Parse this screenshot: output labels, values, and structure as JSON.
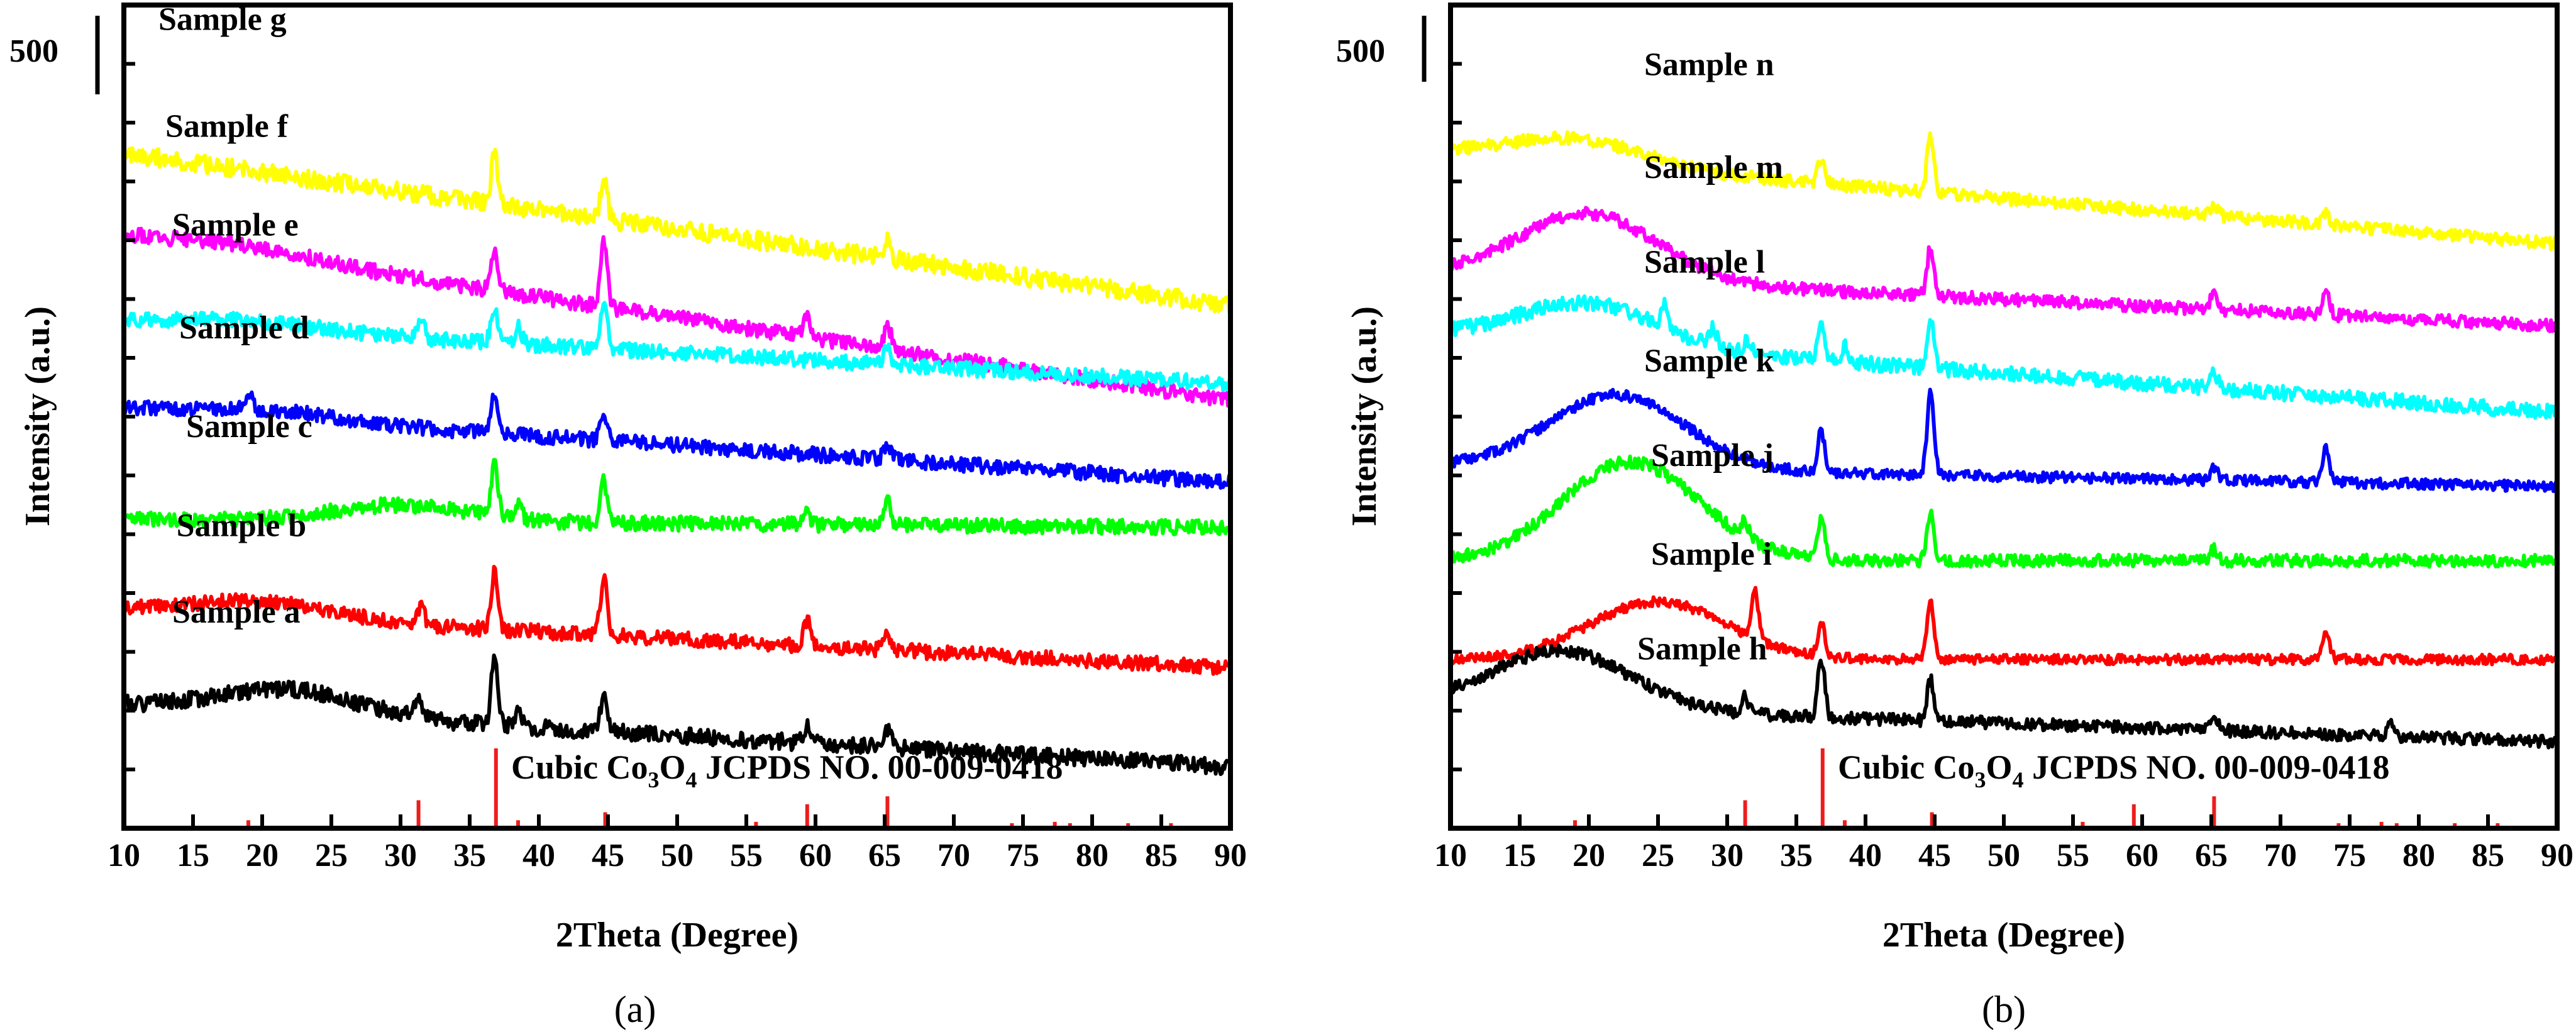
{
  "chart_data": [
    {
      "panel": "(a)",
      "type": "line",
      "xlabel": "2Theta (Degree)",
      "ylabel": "Intensity (a.u.)",
      "xlim": [
        10,
        90
      ],
      "xticks": [
        10,
        15,
        20,
        25,
        30,
        35,
        40,
        45,
        50,
        55,
        60,
        65,
        70,
        75,
        80,
        85,
        90
      ],
      "scale_bar_label": "500",
      "reference": {
        "label_prefix": "Cubic Co",
        "label_sub1": "3",
        "label_mid": "O",
        "label_sub2": "4",
        "label_suffix": " JCPDS NO. 00-009-0418",
        "peaks": [
          {
            "two_theta": 19.0,
            "rel": 0.1
          },
          {
            "two_theta": 31.3,
            "rel": 0.35
          },
          {
            "two_theta": 36.9,
            "rel": 1.0
          },
          {
            "two_theta": 38.5,
            "rel": 0.1
          },
          {
            "two_theta": 44.8,
            "rel": 0.2
          },
          {
            "two_theta": 55.7,
            "rel": 0.08
          },
          {
            "two_theta": 59.4,
            "rel": 0.3
          },
          {
            "two_theta": 65.2,
            "rel": 0.4
          },
          {
            "two_theta": 74.2,
            "rel": 0.05
          },
          {
            "two_theta": 77.3,
            "rel": 0.08
          },
          {
            "two_theta": 78.4,
            "rel": 0.05
          },
          {
            "two_theta": 82.6,
            "rel": 0.04
          },
          {
            "two_theta": 85.7,
            "rel": 0.03
          }
        ]
      },
      "series": [
        {
          "name": "Sample g",
          "color": "#ffff00",
          "start": 82.0,
          "end": 63.5,
          "hump": 0,
          "hump_center": 20,
          "seed": 7,
          "noise": 2.2,
          "label_x": 12.5,
          "label_y": 97.0,
          "peaks": [
            {
              "x": 36.8,
              "h": 6
            },
            {
              "x": 44.7,
              "h": 5
            },
            {
              "x": 65.2,
              "h": 2
            }
          ]
        },
        {
          "name": "Sample f",
          "color": "#ff00ff",
          "start": 72.0,
          "end": 52.0,
          "hump": 1,
          "hump_center": 19,
          "seed": 6,
          "noise": 1.8,
          "label_x": 13.0,
          "label_y": 84.0,
          "peaks": [
            {
              "x": 36.8,
              "h": 5
            },
            {
              "x": 44.7,
              "h": 8
            },
            {
              "x": 59.4,
              "h": 3
            },
            {
              "x": 65.2,
              "h": 3
            }
          ]
        },
        {
          "name": "Sample e",
          "color": "#00ffff",
          "start": 61.5,
          "end": 54.0,
          "hump": 1,
          "hump_center": 19,
          "seed": 5,
          "noise": 1.8,
          "label_x": 13.5,
          "label_y": 72.0,
          "peaks": [
            {
              "x": 31.5,
              "h": 2
            },
            {
              "x": 36.8,
              "h": 4
            },
            {
              "x": 38.5,
              "h": 2
            },
            {
              "x": 44.7,
              "h": 6
            },
            {
              "x": 65.2,
              "h": 2
            }
          ]
        },
        {
          "name": "Sample d",
          "color": "#0000ff",
          "start": 51.0,
          "end": 42.0,
          "hump": 1,
          "hump_center": 20,
          "seed": 4,
          "noise": 1.8,
          "label_x": 14.0,
          "label_y": 59.5,
          "peaks": [
            {
              "x": 19.0,
              "h": 2
            },
            {
              "x": 36.8,
              "h": 5
            },
            {
              "x": 44.7,
              "h": 3
            },
            {
              "x": 65.2,
              "h": 2
            }
          ]
        },
        {
          "name": "Sample c",
          "color": "#00ff00",
          "start": 37.5,
          "end": 36.5,
          "hump": 2,
          "hump_center": 30,
          "seed": 3,
          "noise": 1.8,
          "label_x": 14.5,
          "label_y": 47.5,
          "peaks": [
            {
              "x": 36.8,
              "h": 6
            },
            {
              "x": 38.5,
              "h": 2
            },
            {
              "x": 44.7,
              "h": 5
            },
            {
              "x": 59.4,
              "h": 1.5
            },
            {
              "x": 65.2,
              "h": 3
            }
          ]
        },
        {
          "name": "Sample b",
          "color": "#ff0000",
          "start": 26.5,
          "end": 19.5,
          "hump": 2,
          "hump_center": 20,
          "seed": 2,
          "noise": 1.8,
          "label_x": 13.8,
          "label_y": 35.5,
          "peaks": [
            {
              "x": 31.5,
              "h": 2
            },
            {
              "x": 36.8,
              "h": 7
            },
            {
              "x": 44.7,
              "h": 7
            },
            {
              "x": 59.4,
              "h": 3
            },
            {
              "x": 65.2,
              "h": 2
            }
          ]
        },
        {
          "name": "Sample a",
          "color": "#000000",
          "start": 15.0,
          "end": 7.5,
          "hump": 3,
          "hump_center": 22,
          "seed": 1,
          "noise": 2.0,
          "label_x": 13.5,
          "label_y": 25.0,
          "peaks": [
            {
              "x": 31.3,
              "h": 3
            },
            {
              "x": 36.8,
              "h": 8
            },
            {
              "x": 38.5,
              "h": 2
            },
            {
              "x": 44.7,
              "h": 4
            },
            {
              "x": 59.4,
              "h": 2
            },
            {
              "x": 65.2,
              "h": 2
            }
          ]
        }
      ]
    },
    {
      "panel": "(b)",
      "type": "line",
      "xlabel": "2Theta (Degree)",
      "ylabel": "Intensity (a.u.)",
      "xlim": [
        10,
        90
      ],
      "xticks": [
        10,
        15,
        20,
        25,
        30,
        35,
        40,
        45,
        50,
        55,
        60,
        65,
        70,
        75,
        80,
        85,
        90
      ],
      "scale_bar_label": "500",
      "reference": {
        "label_prefix": "Cubic Co",
        "label_sub1": "3",
        "label_mid": "O",
        "label_sub2": "4",
        "label_suffix": " JCPDS NO. 00-009-0418",
        "peaks": [
          {
            "two_theta": 19.0,
            "rel": 0.1
          },
          {
            "two_theta": 31.3,
            "rel": 0.35
          },
          {
            "two_theta": 36.9,
            "rel": 1.0
          },
          {
            "two_theta": 38.5,
            "rel": 0.1
          },
          {
            "two_theta": 44.8,
            "rel": 0.2
          },
          {
            "two_theta": 55.7,
            "rel": 0.08
          },
          {
            "two_theta": 59.4,
            "rel": 0.3
          },
          {
            "two_theta": 65.2,
            "rel": 0.4
          },
          {
            "two_theta": 74.2,
            "rel": 0.05
          },
          {
            "two_theta": 77.3,
            "rel": 0.08
          },
          {
            "two_theta": 78.4,
            "rel": 0.05
          },
          {
            "two_theta": 82.6,
            "rel": 0.04
          },
          {
            "two_theta": 85.7,
            "rel": 0.03
          }
        ]
      },
      "series": [
        {
          "name": "Sample n",
          "color": "#ffff00",
          "start": 82.0,
          "end": 71.0,
          "hump": 3,
          "hump_center": 19,
          "seed": 14,
          "noise": 1.5,
          "label_x": 24.0,
          "label_y": 91.5,
          "peaks": [
            {
              "x": 36.8,
              "h": 3
            },
            {
              "x": 44.7,
              "h": 7
            },
            {
              "x": 65.2,
              "h": 1.5
            },
            {
              "x": 73.3,
              "h": 1.5
            }
          ]
        },
        {
          "name": "Sample m",
          "color": "#ff00ff",
          "start": 67.5,
          "end": 61.0,
          "hump": 8,
          "hump_center": 20,
          "seed": 13,
          "noise": 1.5,
          "label_x": 24.0,
          "label_y": 79.0,
          "peaks": [
            {
              "x": 44.7,
              "h": 6
            },
            {
              "x": 65.2,
              "h": 2
            },
            {
              "x": 73.3,
              "h": 3
            }
          ]
        },
        {
          "name": "Sample l",
          "color": "#00ffff",
          "start": 60.0,
          "end": 50.5,
          "hump": 5,
          "hump_center": 20,
          "seed": 12,
          "noise": 1.8,
          "label_x": 24.0,
          "label_y": 67.5,
          "peaks": [
            {
              "x": 25.5,
              "h": 3
            },
            {
              "x": 29.0,
              "h": 2
            },
            {
              "x": 31.5,
              "h": 1.5
            },
            {
              "x": 36.8,
              "h": 4
            },
            {
              "x": 38.5,
              "h": 2
            },
            {
              "x": 44.7,
              "h": 6
            },
            {
              "x": 65.2,
              "h": 2
            }
          ]
        },
        {
          "name": "Sample k",
          "color": "#0000ff",
          "start": 44.0,
          "end": 41.5,
          "hump": 9,
          "hump_center": 22,
          "seed": 11,
          "noise": 1.3,
          "label_x": 24.0,
          "label_y": 55.5,
          "peaks": [
            {
              "x": 36.8,
              "h": 5
            },
            {
              "x": 44.7,
              "h": 10
            },
            {
              "x": 65.2,
              "h": 1.5
            },
            {
              "x": 73.3,
              "h": 4
            }
          ]
        },
        {
          "name": "Sample j",
          "color": "#00ff00",
          "start": 32.5,
          "end": 32.5,
          "hump": 12,
          "hump_center": 23,
          "seed": 10,
          "noise": 1.5,
          "label_x": 24.5,
          "label_y": 44.0,
          "peaks": [
            {
              "x": 31.3,
              "h": 2
            },
            {
              "x": 36.8,
              "h": 5
            },
            {
              "x": 44.7,
              "h": 6
            },
            {
              "x": 65.2,
              "h": 1.5
            }
          ]
        },
        {
          "name": "Sample i",
          "color": "#ff0000",
          "start": 20.5,
          "end": 20.5,
          "hump": 7,
          "hump_center": 25,
          "seed": 9,
          "noise": 1.2,
          "label_x": 24.5,
          "label_y": 32.0,
          "peaks": [
            {
              "x": 32.0,
              "h": 6
            },
            {
              "x": 36.8,
              "h": 4
            },
            {
              "x": 44.7,
              "h": 7
            },
            {
              "x": 73.3,
              "h": 3.5
            }
          ]
        },
        {
          "name": "Sample h",
          "color": "#000000",
          "start": 15.0,
          "end": 10.5,
          "hump": 7,
          "hump_center": 18,
          "seed": 8,
          "noise": 1.5,
          "label_x": 23.5,
          "label_y": 20.5,
          "peaks": [
            {
              "x": 31.3,
              "h": 2
            },
            {
              "x": 36.8,
              "h": 7
            },
            {
              "x": 44.7,
              "h": 5
            },
            {
              "x": 65.2,
              "h": 2
            },
            {
              "x": 78.0,
              "h": 1.5
            }
          ]
        }
      ]
    }
  ]
}
